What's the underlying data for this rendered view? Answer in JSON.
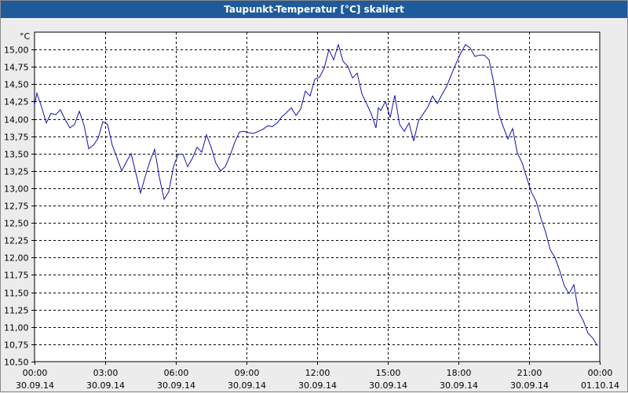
{
  "window": {
    "title": "Taupunkt-Temperatur [°C] skaliert"
  },
  "colors": {
    "title_bar": "#1f5a9a",
    "line": "#1010b0",
    "grid": "#000000",
    "background": "#ffffff"
  },
  "chart_data": {
    "type": "line",
    "title": "Taupunkt-Temperatur [°C] skaliert",
    "ylabel": "°C",
    "xlabel": "",
    "ylim": [
      10.5,
      15.25
    ],
    "xlim": [
      0,
      24
    ],
    "grid": true,
    "yticks": [
      "10,50",
      "10,75",
      "11,00",
      "11,25",
      "11,50",
      "11,75",
      "12,00",
      "12,25",
      "12,50",
      "12,75",
      "13,00",
      "13,25",
      "13,50",
      "13,75",
      "14,00",
      "14,25",
      "14,50",
      "14,75",
      "15,00"
    ],
    "xticks": [
      {
        "time": "00:00",
        "date": "30.09.14"
      },
      {
        "time": "03:00",
        "date": "30.09.14"
      },
      {
        "time": "06:00",
        "date": "30.09.14"
      },
      {
        "time": "09:00",
        "date": "30.09.14"
      },
      {
        "time": "12:00",
        "date": "30.09.14"
      },
      {
        "time": "15:00",
        "date": "30.09.14"
      },
      {
        "time": "18:00",
        "date": "30.09.14"
      },
      {
        "time": "21:00",
        "date": "30.09.14"
      },
      {
        "time": "00:00",
        "date": "01.10.14"
      }
    ],
    "series": [
      {
        "x": [
          0.0,
          0.1,
          0.3,
          0.5,
          0.7,
          0.9,
          1.1,
          1.3,
          1.5,
          1.7,
          1.9,
          2.1,
          2.3,
          2.5,
          2.7,
          2.9,
          3.1,
          3.3,
          3.5,
          3.7,
          3.9,
          4.1,
          4.3,
          4.5,
          4.7,
          4.9,
          5.1,
          5.3,
          5.5,
          5.7,
          5.9,
          6.1,
          6.3,
          6.5,
          6.7,
          6.9,
          7.1,
          7.3,
          7.5,
          7.7,
          7.9,
          8.1,
          8.3,
          8.5,
          8.7,
          8.9,
          9.1,
          9.3,
          9.5,
          9.7,
          9.9,
          10.1,
          10.3,
          10.5,
          10.7,
          10.9,
          11.1,
          11.3,
          11.5,
          11.7,
          11.9,
          12.1,
          12.3,
          12.5,
          12.7,
          12.9,
          13.1,
          13.3,
          13.5,
          13.7,
          13.9,
          14.1,
          14.3,
          14.5,
          14.6,
          14.7,
          14.9,
          15.1,
          15.3,
          15.5,
          15.7,
          15.9,
          16.1,
          16.3,
          16.5,
          16.7,
          16.9,
          17.1,
          17.3,
          17.5,
          17.7,
          17.9,
          18.1,
          18.3,
          18.5,
          18.7,
          18.9,
          19.1,
          19.3,
          19.5,
          19.7,
          19.9,
          20.1,
          20.3,
          20.5,
          20.7,
          20.9,
          21.1,
          21.3,
          21.5,
          21.7,
          21.9,
          22.1,
          22.3,
          22.5,
          22.7,
          22.9,
          23.1,
          23.3,
          23.5,
          23.7,
          23.9
        ],
        "y": [
          14.2,
          14.37,
          14.17,
          13.94,
          14.08,
          14.06,
          14.13,
          13.99,
          13.87,
          13.92,
          14.11,
          13.91,
          13.57,
          13.62,
          13.72,
          13.96,
          13.92,
          13.62,
          13.44,
          13.25,
          13.38,
          13.5,
          13.22,
          12.93,
          13.17,
          13.39,
          13.56,
          13.16,
          12.84,
          12.95,
          13.31,
          13.49,
          13.49,
          13.31,
          13.43,
          13.59,
          13.52,
          13.77,
          13.59,
          13.36,
          13.25,
          13.31,
          13.47,
          13.66,
          13.81,
          13.82,
          13.8,
          13.79,
          13.82,
          13.85,
          13.9,
          13.89,
          13.94,
          14.03,
          14.09,
          14.16,
          14.05,
          14.14,
          14.4,
          14.33,
          14.57,
          14.6,
          14.73,
          15.0,
          14.85,
          15.07,
          14.83,
          14.76,
          14.59,
          14.66,
          14.36,
          14.22,
          14.07,
          13.87,
          14.16,
          14.12,
          14.25,
          14.02,
          14.34,
          13.92,
          13.82,
          13.94,
          13.68,
          13.97,
          14.07,
          14.17,
          14.33,
          14.22,
          14.35,
          14.47,
          14.64,
          14.8,
          14.95,
          15.07,
          15.02,
          14.9,
          14.92,
          14.92,
          14.85,
          14.52,
          14.08,
          13.89,
          13.71,
          13.86,
          13.51,
          13.37,
          13.15,
          12.94,
          12.81,
          12.57,
          12.37,
          12.11,
          12.0,
          11.81,
          11.59,
          11.48,
          11.61,
          11.22,
          11.09,
          10.91,
          10.84,
          10.73
        ]
      }
    ]
  }
}
